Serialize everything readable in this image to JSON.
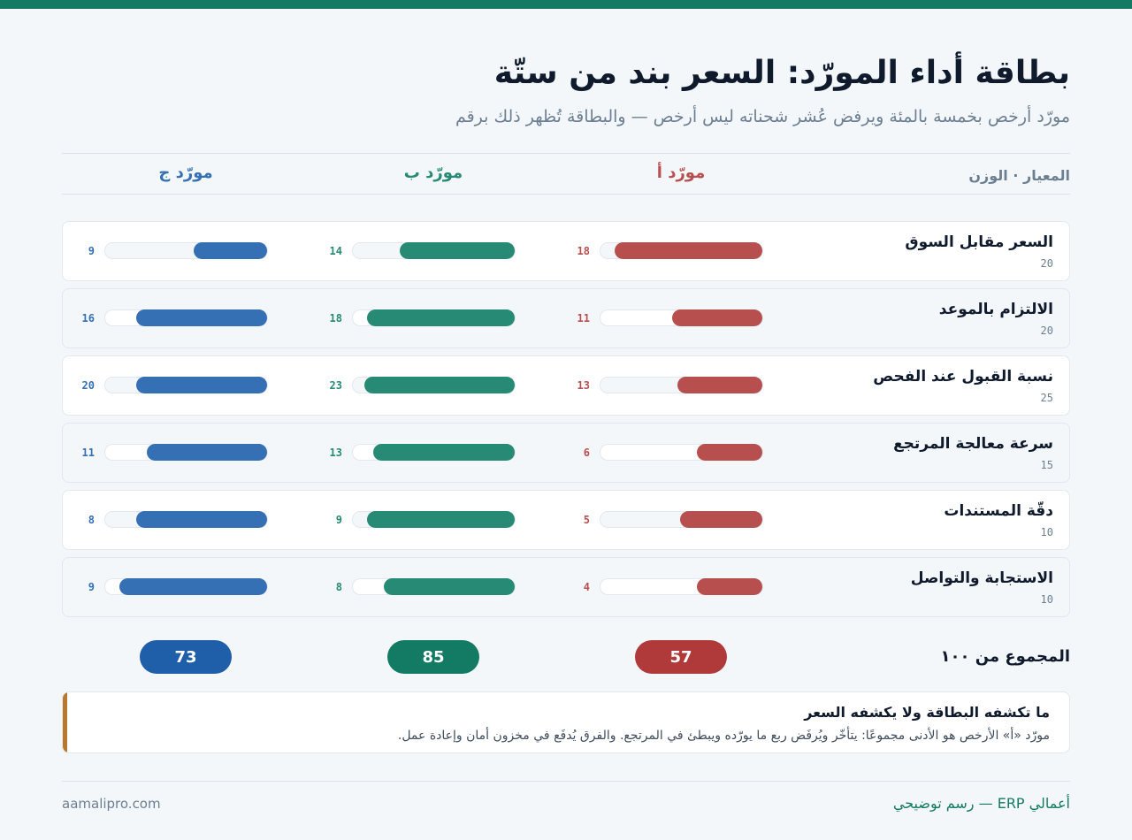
{
  "header": {
    "title": "بطاقة أداء المورّد: السعر بند من ستّة",
    "subtitle": "مورّد أرخص بخمسة بالمئة ويرفض عُشر شحناته ليس أرخص — والبطاقة تُظهر ذلك برقم"
  },
  "columns": {
    "criterion": "المعيار · الوزن",
    "suppliers": [
      "مورّد أ",
      "مورّد ب",
      "مورّد ج"
    ]
  },
  "colors": {
    "supplier_a": "#b84f4f",
    "supplier_b": "#268a74",
    "supplier_c": "#356fb4",
    "pill_a": "#b03a3a",
    "pill_b": "#137a64",
    "pill_c": "#1f5ea8",
    "accent": "#137a64",
    "note_bar": "#b8792f"
  },
  "chart_data": {
    "type": "bar",
    "orientation": "horizontal",
    "categories": [
      {
        "name": "السعر مقابل السوق",
        "weight": 20
      },
      {
        "name": "الالتزام بالموعد",
        "weight": 20
      },
      {
        "name": "نسبة القبول عند الفحص",
        "weight": 25
      },
      {
        "name": "سرعة معالجة المرتجع",
        "weight": 15
      },
      {
        "name": "دقّة المستندات",
        "weight": 10
      },
      {
        "name": "الاستجابة والتواصل",
        "weight": 10
      }
    ],
    "series": [
      {
        "name": "مورّد أ",
        "values": [
          18,
          11,
          13,
          6,
          5,
          4
        ]
      },
      {
        "name": "مورّد ب",
        "values": [
          14,
          18,
          23,
          13,
          9,
          8
        ]
      },
      {
        "name": "مورّد ج",
        "values": [
          9,
          16,
          20,
          11,
          8,
          9
        ]
      }
    ],
    "value_max_is_weight": true
  },
  "totals": {
    "label": "المجموع من ١٠٠",
    "values": [
      "57",
      "85",
      "73"
    ]
  },
  "note": {
    "title": "ما تكشفه البطاقة ولا يكشفه السعر",
    "body": "مورّد «أ» الأرخص هو الأدنى مجموعًا: يتأخّر ويُرفَض ربع ما يورّده ويبطئ في المرتجع. والفرق يُدفَع في مخزون أمان وإعادة عمل."
  },
  "footer": {
    "brand": "أعمالي ERP — رسم توضيحي",
    "site": "aamalipro.com"
  }
}
